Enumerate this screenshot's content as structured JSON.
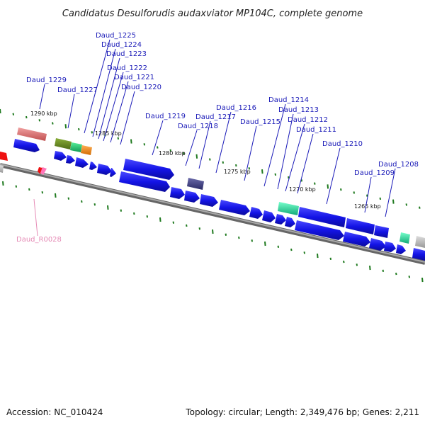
{
  "title": "Candidatus Desulforudis audaxviator MP104C, complete genome",
  "footer": {
    "accession": "Accession: NC_010424",
    "topology": "Topology: circular; Length: 2,349,476 bp; Genes: 2,211"
  },
  "gene_labels": [
    "Daud_1225",
    "Daud_1224",
    "Daud_1223",
    "Daud_1222",
    "Daud_1221",
    "Daud_1220",
    "Daud_1229",
    "Daud_1227",
    "Daud_1219",
    "Daud_1218",
    "Daud_1217",
    "Daud_1216",
    "Daud_1215",
    "Daud_1214",
    "Daud_1213",
    "Daud_1212",
    "Daud_1211",
    "Daud_1210",
    "Daud_1209",
    "Daud_1208"
  ],
  "rna_label": "Daud_R0028",
  "kbp_labels": [
    "1290 kbp",
    "1285 kbp",
    "1280 kbp",
    "1275 kbp",
    "1270 kbp",
    "1265 kbp"
  ],
  "colors": {
    "forward_gene": "#1414e6",
    "backbone": "#8a8a8a",
    "tick": "#1f7a1f",
    "salmon": "#e07a7a",
    "olive": "#6b8e23",
    "teal": "#22cc88",
    "orange": "#ff8c1a",
    "slate": "#444488",
    "mint": "#22ddaa",
    "red": "#ee1111",
    "pink": "#ff77bb",
    "grey": "#bbbbbb"
  }
}
